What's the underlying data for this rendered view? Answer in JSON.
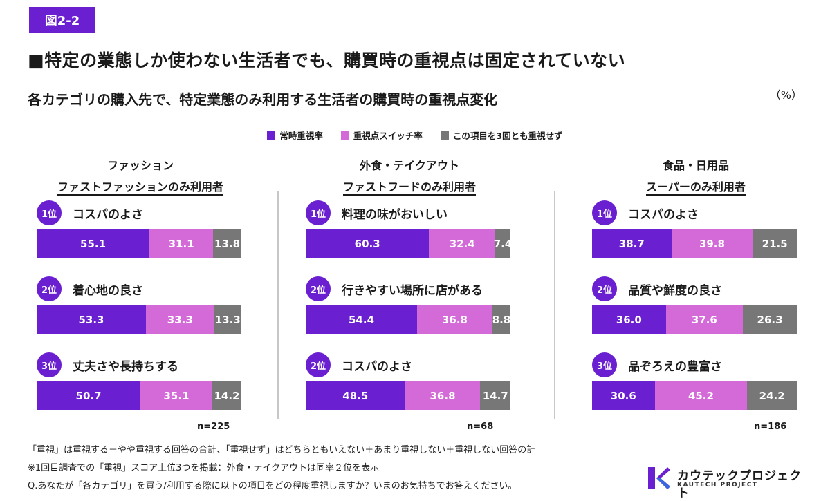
{
  "figure_label": "図2-2",
  "title": "■特定の業態しか使わない生活者でも、購買時の重視点は固定されていない",
  "subtitle": "各カテゴリの購入先で、特定業態のみ利用する生活者の購買時の重視点変化",
  "unit": "（%）",
  "legend": [
    {
      "label": "常時重視率",
      "color": "#6a1fd0"
    },
    {
      "label": "重視点スイッチ率",
      "color": "#d36ad8"
    },
    {
      "label": "この項目を3回とも重視せず",
      "color": "#777777"
    }
  ],
  "chart_data": {
    "type": "bar",
    "stacked": true,
    "orientation": "horizontal",
    "unit": "%",
    "series_names": [
      "常時重視率",
      "重視点スイッチ率",
      "この項目を3回とも重視せず"
    ],
    "panels": [
      {
        "category": "ファッション",
        "segment": "ファストファッションのみ利用者",
        "n": "n=225",
        "items": [
          {
            "rank": "1位",
            "label": "コスパのよさ",
            "values": [
              55.1,
              31.1,
              13.8
            ]
          },
          {
            "rank": "2位",
            "label": "着心地の良さ",
            "values": [
              53.3,
              33.3,
              13.3
            ]
          },
          {
            "rank": "3位",
            "label": "丈夫さや長持ちする",
            "values": [
              50.7,
              35.1,
              14.2
            ]
          }
        ]
      },
      {
        "category": "外食・テイクアウト",
        "segment": "ファストフードのみ利用者",
        "n": "n=68",
        "items": [
          {
            "rank": "1位",
            "label": "料理の味がおいしい",
            "values": [
              60.3,
              32.4,
              7.4
            ]
          },
          {
            "rank": "2位",
            "label": "行きやすい場所に店がある",
            "values": [
              54.4,
              36.8,
              8.8
            ]
          },
          {
            "rank": "2位",
            "label": "コスパのよさ",
            "values": [
              48.5,
              36.8,
              14.7
            ]
          }
        ]
      },
      {
        "category": "食品・日用品",
        "segment": "スーパーのみ利用者",
        "n": "n=186",
        "items": [
          {
            "rank": "1位",
            "label": "コスパのよさ",
            "values": [
              38.7,
              39.8,
              21.5
            ]
          },
          {
            "rank": "2位",
            "label": "品質や鮮度の良さ",
            "values": [
              36.0,
              37.6,
              26.3
            ]
          },
          {
            "rank": "3位",
            "label": "品ぞろえの豊富さ",
            "values": [
              30.6,
              45.2,
              24.2
            ]
          }
        ]
      }
    ]
  },
  "footnotes": [
    "「重視」は重視する＋やや重視する回答の合計、「重視せず」はどちらともいえない＋あまり重視しない＋重視しない回答の計",
    "※1回目調査での「重視」スコア上位3つを掲載：外食・テイクアウトは同率２位を表示",
    "Q.あなたが「各カテゴリ」を買う/利用する際に以下の項目をどの程度重視しますか？いまのお気持ちでお答えください。"
  ],
  "logo": {
    "name": "カウテックプロジェクト",
    "sub": "KAUTECH PROJECT",
    "icon": "kautech-k-logo-icon"
  }
}
